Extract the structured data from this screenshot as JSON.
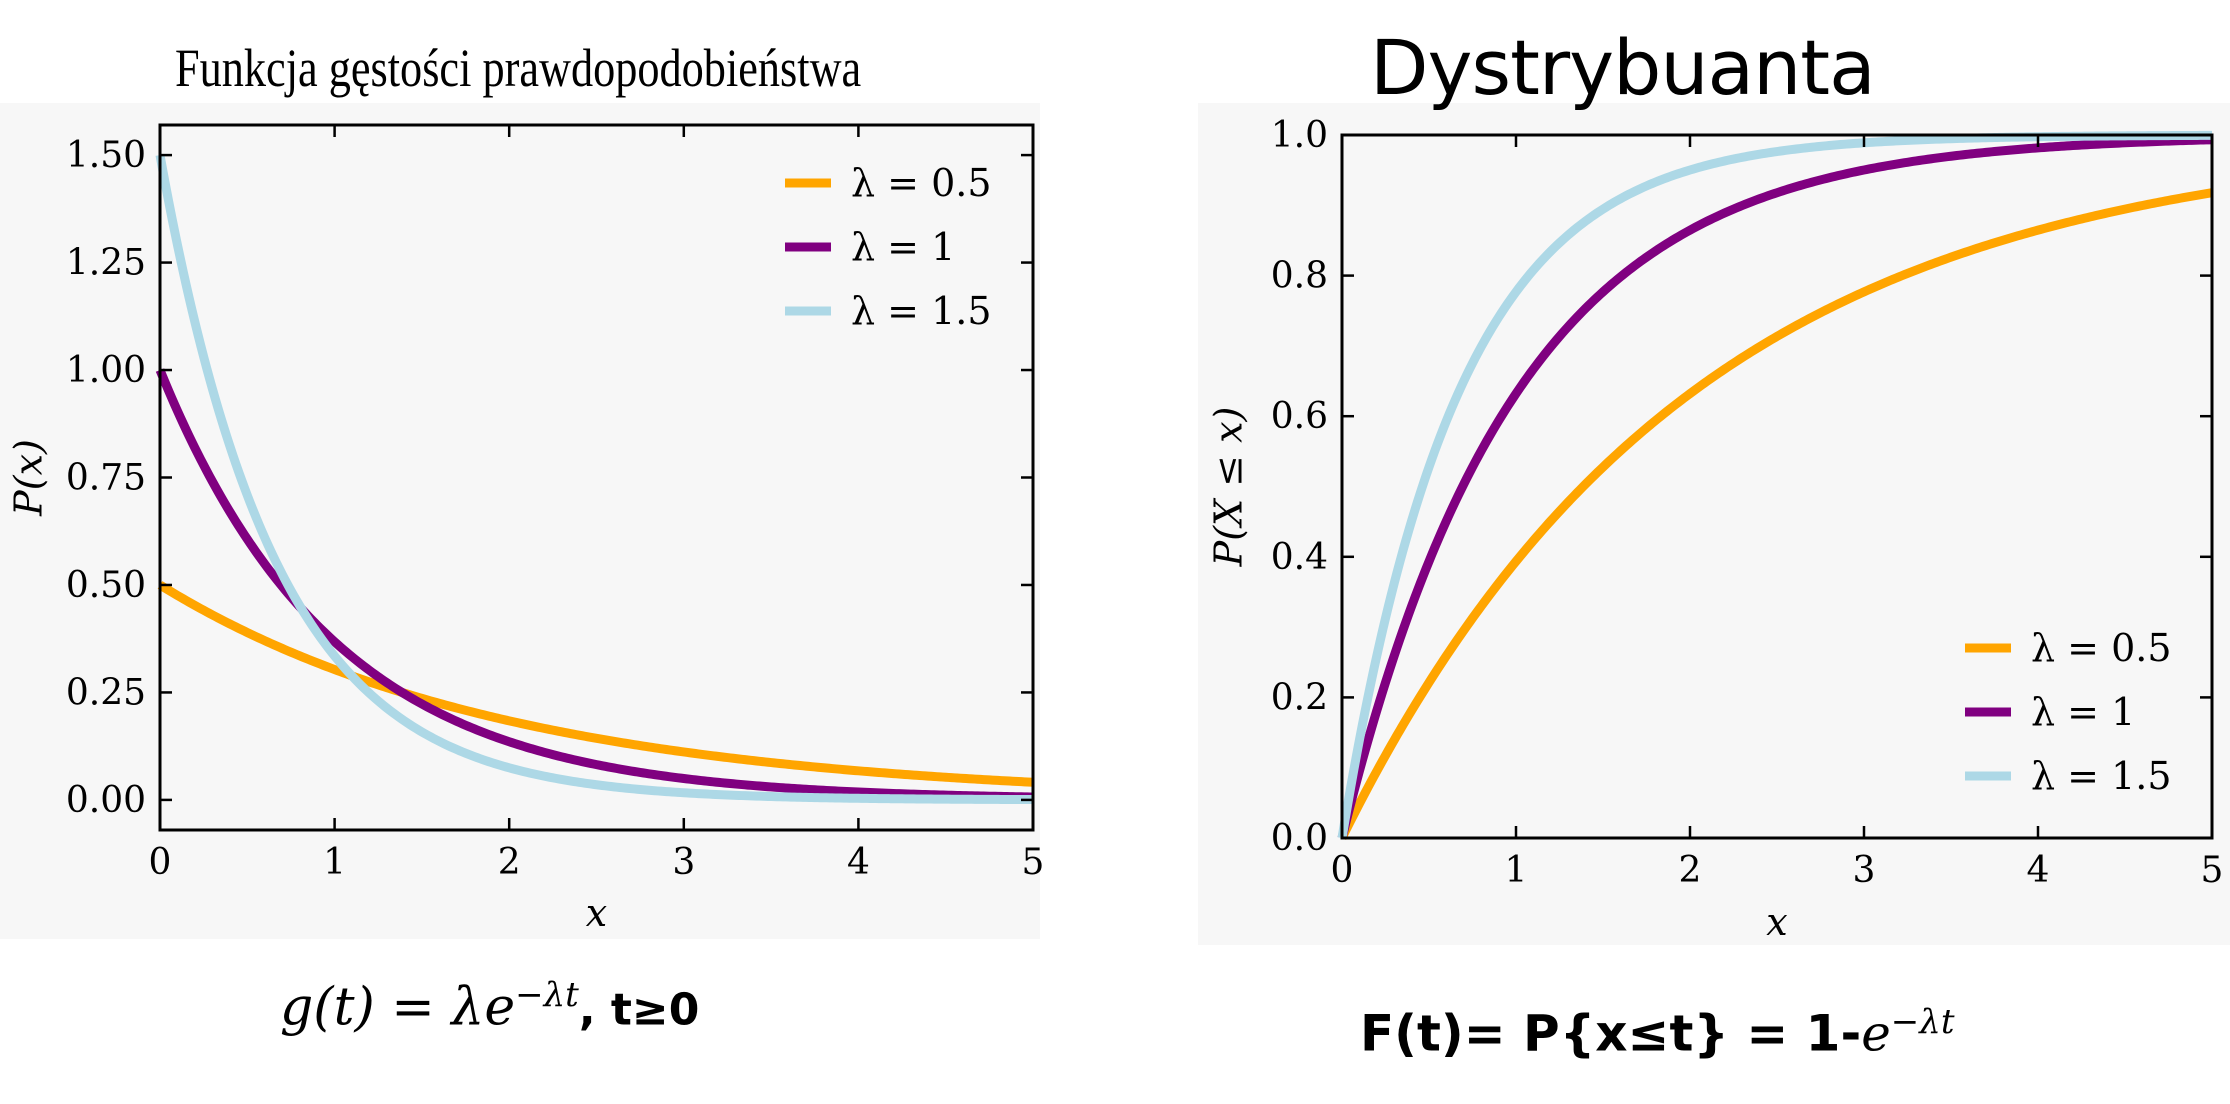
{
  "chart_data": [
    {
      "type": "line",
      "title": "Funkcja gęstości prawdopodobieństwa",
      "xlabel": "x",
      "ylabel": "P(x)",
      "xlim": [
        0,
        5
      ],
      "ylim": [
        -0.07,
        1.57
      ],
      "x_ticks": [
        "0",
        "1",
        "2",
        "3",
        "4",
        "5"
      ],
      "y_ticks": [
        "0.00",
        "0.25",
        "0.50",
        "0.75",
        "1.00",
        "1.25",
        "1.50"
      ],
      "legend_position": "top-right",
      "function": "pdf",
      "series": [
        {
          "name": "λ = 0.5",
          "lambda": 0.5,
          "color": "#FFA500"
        },
        {
          "name": "λ = 1",
          "lambda": 1,
          "color": "#800080"
        },
        {
          "name": "λ = 1.5",
          "lambda": 1.5,
          "color": "#ADD8E6"
        }
      ],
      "x": [
        0,
        0.25,
        0.5,
        1,
        1.5,
        2,
        3,
        4,
        5
      ],
      "series_values": {
        "λ = 0.5": [
          0.5,
          0.441,
          0.389,
          0.303,
          0.236,
          0.184,
          0.112,
          0.068,
          0.041
        ],
        "λ = 1": [
          1.0,
          0.779,
          0.607,
          0.368,
          0.223,
          0.135,
          0.05,
          0.018,
          0.007
        ],
        "λ = 1.5": [
          1.5,
          1.031,
          0.709,
          0.335,
          0.158,
          0.075,
          0.017,
          0.004,
          0.001
        ]
      },
      "grid": false
    },
    {
      "type": "line",
      "title": "Dystrybuanta",
      "xlabel": "x",
      "ylabel": "P(X ≤ x)",
      "xlim": [
        0,
        5
      ],
      "ylim": [
        0,
        1
      ],
      "x_ticks": [
        "0",
        "1",
        "2",
        "3",
        "4",
        "5"
      ],
      "y_ticks": [
        "0.0",
        "0.2",
        "0.4",
        "0.6",
        "0.8",
        "1.0"
      ],
      "legend_position": "bottom-right",
      "function": "cdf",
      "series": [
        {
          "name": "λ = 0.5",
          "lambda": 0.5,
          "color": "#FFA500"
        },
        {
          "name": "λ = 1",
          "lambda": 1,
          "color": "#800080"
        },
        {
          "name": "λ = 1.5",
          "lambda": 1.5,
          "color": "#ADD8E6"
        }
      ],
      "x": [
        0,
        0.25,
        0.5,
        1,
        1.5,
        2,
        3,
        4,
        5
      ],
      "series_values": {
        "λ = 0.5": [
          0,
          0.118,
          0.221,
          0.393,
          0.528,
          0.632,
          0.777,
          0.865,
          0.918
        ],
        "λ = 1": [
          0,
          0.221,
          0.393,
          0.632,
          0.777,
          0.865,
          0.95,
          0.982,
          0.993
        ],
        "λ = 1.5": [
          0,
          0.313,
          0.528,
          0.777,
          0.895,
          0.95,
          0.989,
          0.998,
          0.999
        ]
      },
      "grid": false
    }
  ],
  "formulas": {
    "left_main": "g(t) = λe",
    "left_exp": "−λt",
    "left_tail": ", t≥0",
    "right_main": "F(t)= P{x≤t} = 1-",
    "right_e": "e",
    "right_exp": "−λt"
  }
}
